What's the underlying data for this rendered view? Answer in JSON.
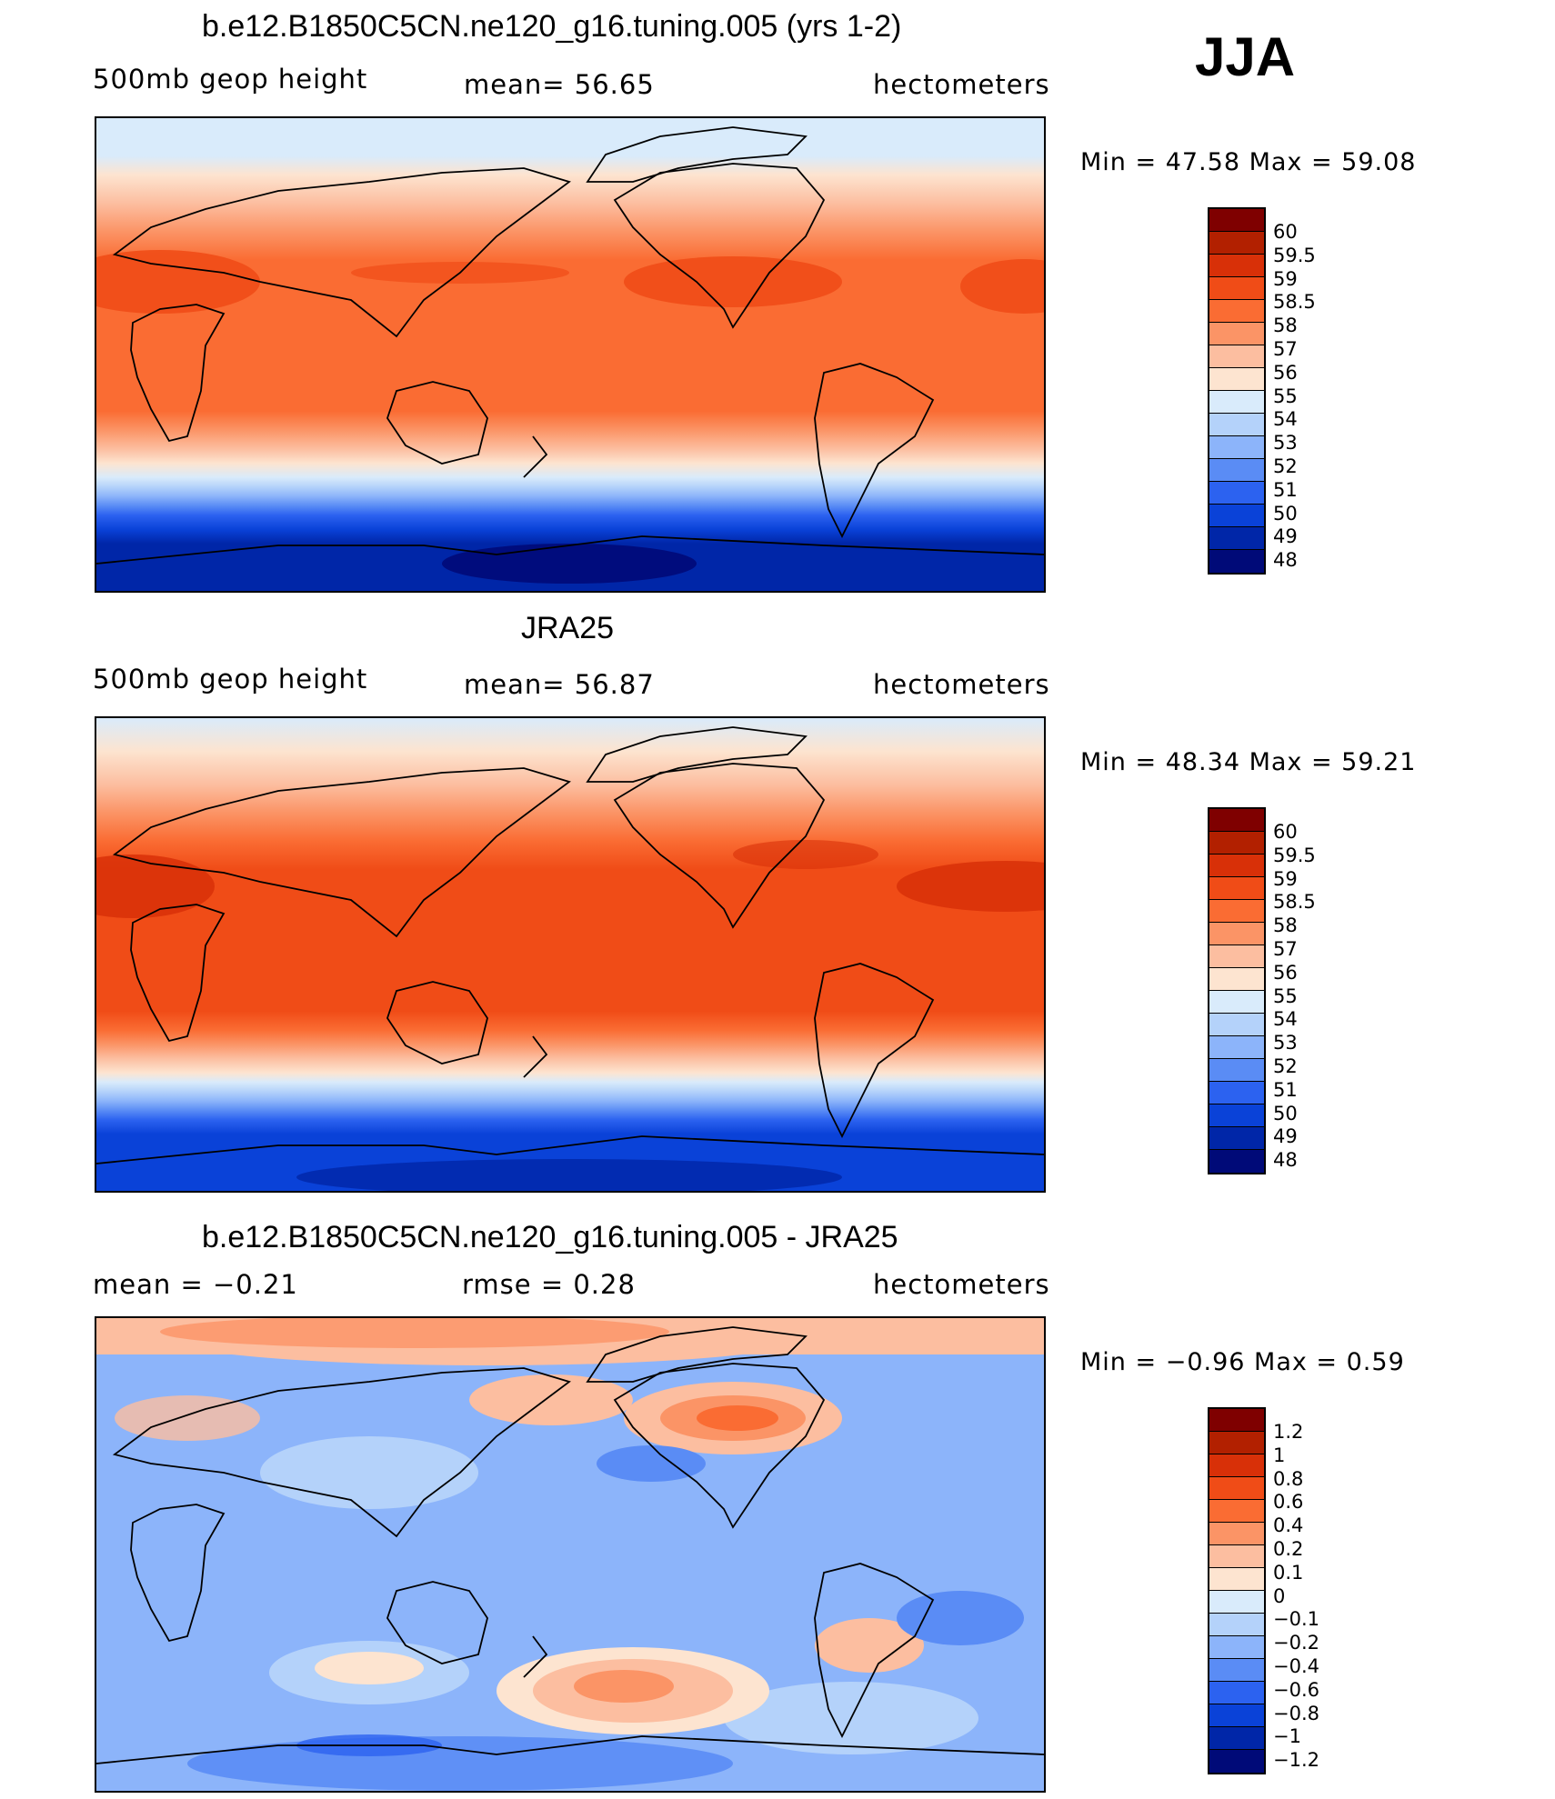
{
  "season": "JJA",
  "panels": [
    {
      "id": "model",
      "title": "b.e12.B1850C5CN.ne120_g16.tuning.005 (yrs 1-2)",
      "left_label": "500mb  geop  height",
      "center_label": "mean=   56.65",
      "units": "hectometers",
      "min_max": "Min  =    47.58  Max  =    59.08",
      "colorbar_labels": [
        "60",
        "59.5",
        "59",
        "58.5",
        "58",
        "57",
        "56",
        "55",
        "54",
        "53",
        "52",
        "51",
        "50",
        "49",
        "48"
      ]
    },
    {
      "id": "obs",
      "title": "JRA25",
      "left_label": "500mb  geop  height",
      "center_label": "mean=   56.87",
      "units": "hectometers",
      "min_max": "Min  =    48.34  Max  =    59.21",
      "colorbar_labels": [
        "60",
        "59.5",
        "59",
        "58.5",
        "58",
        "57",
        "56",
        "55",
        "54",
        "53",
        "52",
        "51",
        "50",
        "49",
        "48"
      ]
    },
    {
      "id": "diff",
      "title": "b.e12.B1850C5CN.ne120_g16.tuning.005 - JRA25",
      "left_label": "mean  =    −0.21",
      "center_label": "rmse  =     0.28",
      "units": "hectometers",
      "min_max": "Min  =    −0.96  Max  =      0.59",
      "colorbar_labels": [
        "1.2",
        "1",
        "0.8",
        "0.6",
        "0.4",
        "0.2",
        "0.1",
        "0",
        "−0.1",
        "−0.2",
        "−0.4",
        "−0.6",
        "−0.8",
        "−1",
        "−1.2"
      ]
    }
  ],
  "colors": {
    "abs_scale": [
      "#7f0000",
      "#b22000",
      "#d83008",
      "#f04c17",
      "#fa6c33",
      "#fb9466",
      "#fcbea0",
      "#fde4d0",
      "#d9ebfb",
      "#b4d2fa",
      "#8cb4fa",
      "#5a8cf5",
      "#2c62f0",
      "#0a42d8",
      "#0026a8",
      "#000a78"
    ],
    "diff_scale": [
      "#7f0000",
      "#b22000",
      "#d83008",
      "#f04c17",
      "#fa6c33",
      "#fb9466",
      "#fcbea0",
      "#fde4d0",
      "#d9ebfb",
      "#b4d2fa",
      "#8cb4fa",
      "#5a8cf5",
      "#2c62f0",
      "#0a42d8",
      "#0026a8",
      "#000a78"
    ]
  }
}
